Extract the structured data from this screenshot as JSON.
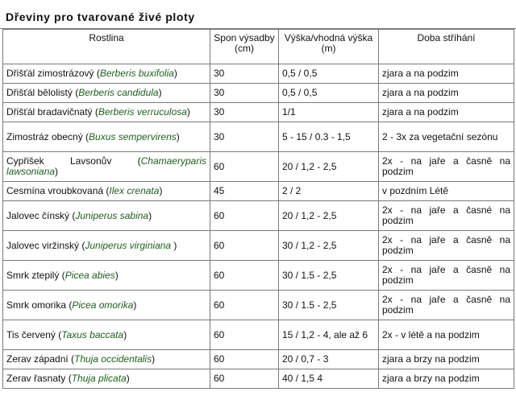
{
  "title": "Dřeviny pro tvarované živé ploty",
  "headers": {
    "plant": "Rostlina",
    "spacing": "Spon výsadby (cm)",
    "height": "Výška/vhodná výška (m)",
    "trimming": "Doba stříhání"
  },
  "rows": [
    {
      "name": "Dřišťál zimostrázový (",
      "latin": "Berberis buxifolia",
      "tail": ")",
      "spacing": "30",
      "height": "0,5 / 0,5",
      "trimming": "zjara a na podzim"
    },
    {
      "name": "Dřišťál bělolistý (",
      "latin": "Berberis candidula",
      "tail": ")",
      "spacing": "30",
      "height": "0,5 / 0,5",
      "trimming": "zjara a na podzim"
    },
    {
      "name": "Dřišťál bradavičnatý (",
      "latin": "Berberis verruculosa",
      "tail": ")",
      "spacing": "30",
      "height": "1/1",
      "trimming": "zjara a na podzim"
    },
    {
      "name": "Zimostráz obecný (",
      "latin": "Buxus sempervirens",
      "tail": ")",
      "spacing": "30",
      "height": "5 - 15 / 0.3 - 1,5",
      "trimming": "2 - 3x za vegetační sezónu"
    },
    {
      "name": "Cypřišek Lavsonův (",
      "latin": "Chamaeryparis lawsoniana",
      "tail": ")",
      "spacing": "60",
      "height": "20 / 1,2 - 2,5",
      "trimming": "2x - na jaře a časně na podzim"
    },
    {
      "name": "Cesmína vroubkovaná (",
      "latin": "Ilex crenata",
      "tail": ")",
      "spacing": "45",
      "height": "2 / 2",
      "trimming": "v pozdním Létě"
    },
    {
      "name": "Jalovec čínský (",
      "latin": "Juniperus sabina",
      "tail": ")",
      "spacing": "60",
      "height": "20 / 1,2 - 2,5",
      "trimming": "2x - na jaře a časné na podzim"
    },
    {
      "name": "Jalovec viržinský (",
      "latin": "Juniperus virginiana",
      "tail": " )",
      "spacing": "60",
      "height": "30 / 1,2 - 2,5",
      "trimming": "2x - na jaře a časně na podzim"
    },
    {
      "name": "Smrk ztepilý (",
      "latin": "Picea abies",
      "tail": ")",
      "spacing": "60",
      "height": "30 / 1.5 - 2,5",
      "trimming": "2x - na jaře a časně na podzim"
    },
    {
      "name": "Smrk omorika (",
      "latin": "Picea omorika",
      "tail": ")",
      "spacing": "60",
      "height": "30 / 1.5 - 2,5",
      "trimming": "2x - na jaře a časně na podzim"
    },
    {
      "name": "Tis červený (",
      "latin": "Taxus baccata",
      "tail": ")",
      "spacing": "60",
      "height": "15 / 1,2 - 4, ale až 6",
      "trimming": "2x - v létě a na podzim"
    },
    {
      "name": "Zerav západní (",
      "latin": "Thuja occidentalis",
      "tail": ")",
      "spacing": "60",
      "height": "20 / 0,7 - 3",
      "trimming": "zjara a brzy na podzim"
    },
    {
      "name": "Zerav řasnaty (",
      "latin": "Thuja plicata",
      "tail": ")",
      "spacing": "60",
      "height": "40 / 1,5 4",
      "trimming": "zjara a brzy na podzim"
    }
  ]
}
